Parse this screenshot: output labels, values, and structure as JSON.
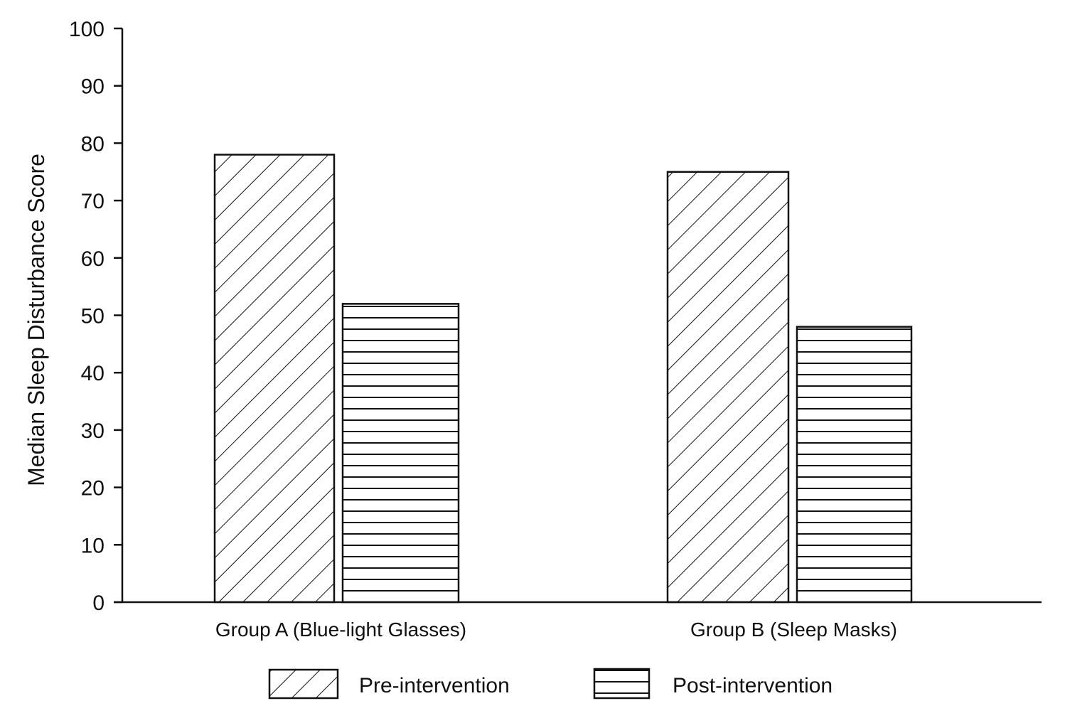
{
  "chart_data": {
    "type": "bar",
    "title": "",
    "xlabel": "",
    "ylabel": "Median Sleep Disturbance Score",
    "ylim": [
      0,
      100
    ],
    "yticks": [
      0,
      10,
      20,
      30,
      40,
      50,
      60,
      70,
      80,
      90,
      100
    ],
    "categories": [
      "Group A (Blue-light Glasses)",
      "Group B (Sleep Masks)"
    ],
    "series": [
      {
        "name": "Pre-intervention",
        "values": [
          78,
          75
        ],
        "pattern": "diagonal-hatch"
      },
      {
        "name": "Post-intervention",
        "values": [
          52,
          48
        ],
        "pattern": "horizontal-hatch"
      }
    ],
    "grid": false,
    "legend_placement": "bottom-center",
    "colors": {
      "ink": "#111111",
      "fill": "#ffffff"
    }
  }
}
